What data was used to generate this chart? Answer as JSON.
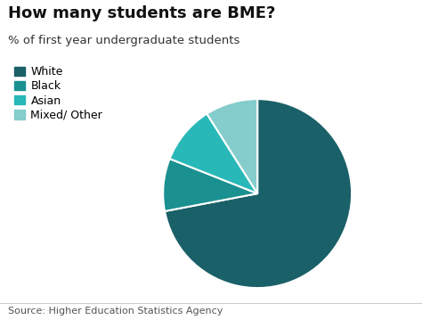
{
  "title": "How many students are BME?",
  "subtitle": "% of first year undergraduate students",
  "source": "Source: Higher Education Statistics Agency",
  "labels": [
    "White",
    "Black",
    "Asian",
    "Mixed/ Other"
  ],
  "values": [
    72.0,
    9.0,
    10.0,
    9.0
  ],
  "colors": [
    "#1a6068",
    "#1a9090",
    "#28b8b8",
    "#85cccc"
  ],
  "startangle": 90,
  "background_color": "#ffffff",
  "title_fontsize": 13,
  "subtitle_fontsize": 9.5,
  "source_fontsize": 8,
  "legend_fontsize": 9
}
